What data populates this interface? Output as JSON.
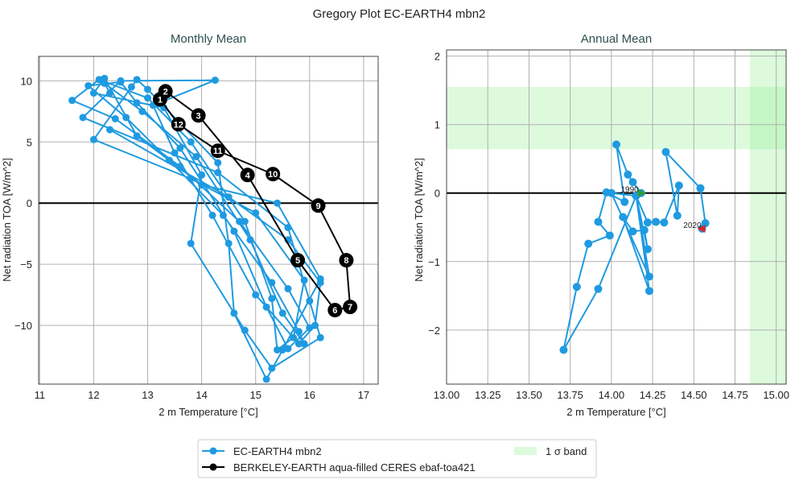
{
  "figure_title": "Gregory Plot EC-EARTH4 mbn2",
  "colors": {
    "model": "#1f9ae0",
    "obs": "#000000",
    "band": "#90ee90",
    "start": "#2ca02c",
    "end": "#d62728"
  },
  "legend": {
    "placement": "bottom-center",
    "entries": [
      {
        "label": "EC-EARTH4 mbn2",
        "type": "line-marker",
        "color": "#1f9ae0"
      },
      {
        "label": "BERKELEY-EARTH aqua-filled CERES ebaf-toa421",
        "type": "line-marker",
        "color": "#000000"
      },
      {
        "label": "1 σ band",
        "type": "patch",
        "color": "#90ee90"
      }
    ]
  },
  "chart_data": [
    {
      "type": "line",
      "title": "Monthly Mean",
      "xlabel": "2 m Temperature [°C]",
      "ylabel": "Net radiation TOA [W/m^2]",
      "xlim": [
        10.98,
        17.27
      ],
      "ylim": [
        -14.8,
        12.0
      ],
      "xticks": [
        11,
        12,
        13,
        14,
        15,
        16,
        17
      ],
      "yticks": [
        -10,
        -5,
        0,
        5,
        10
      ],
      "grid": true,
      "hline": 0,
      "series": [
        {
          "name": "EC-EARTH4 mbn2",
          "points": [
            [
              12.3,
              9.0
            ],
            [
              12.2,
              9.8
            ],
            [
              12.9,
              7.5
            ],
            [
              13.9,
              3.8
            ],
            [
              14.9,
              -3
            ],
            [
              15.5,
              -9
            ],
            [
              15.9,
              -11.5
            ],
            [
              15.8,
              -10.5
            ],
            [
              15.3,
              -6.5
            ],
            [
              14.4,
              -1
            ],
            [
              13.4,
              3.5
            ],
            [
              12.6,
              7
            ],
            [
              11.9,
              9.6
            ],
            [
              12.5,
              9.9
            ],
            [
              12.8,
              8.2
            ],
            [
              13.6,
              4.5
            ],
            [
              14.6,
              -2.3
            ],
            [
              15.2,
              -8.5
            ],
            [
              15.6,
              -11.9
            ],
            [
              16.0,
              -10.2
            ],
            [
              15.6,
              -7
            ],
            [
              14.7,
              -1.5
            ],
            [
              13.6,
              3
            ],
            [
              12.4,
              6.9
            ],
            [
              11.6,
              8.4
            ],
            [
              12.1,
              10.1
            ],
            [
              13.0,
              8.6
            ],
            [
              13.8,
              5
            ],
            [
              14.8,
              -1.5
            ],
            [
              15.3,
              -7.8
            ],
            [
              15.4,
              -12
            ],
            [
              15.7,
              -11
            ],
            [
              15.9,
              -6.3
            ],
            [
              15.0,
              -0.8
            ],
            [
              13.8,
              2
            ],
            [
              12.0,
              5.2
            ],
            [
              12.7,
              9.5
            ],
            [
              12.8,
              10.1
            ],
            [
              13.0,
              9.3
            ],
            [
              14.3,
              3.3
            ],
            [
              14.5,
              -3.3
            ],
            [
              14.6,
              -9
            ],
            [
              15.2,
              -14.4
            ],
            [
              15.5,
              -12
            ],
            [
              16.2,
              -6.2
            ],
            [
              15.4,
              0
            ],
            [
              14.0,
              1.5
            ],
            [
              12.8,
              5.5
            ],
            [
              12.2,
              10.2
            ],
            [
              12.0,
              9.0
            ],
            [
              13.3,
              7.8
            ],
            [
              14.0,
              2.3
            ],
            [
              13.8,
              -3.3
            ],
            [
              14.8,
              -10.4
            ],
            [
              15.3,
              -13.5
            ],
            [
              16.2,
              -11
            ],
            [
              16.0,
              -8
            ],
            [
              15.6,
              -2
            ],
            [
              14.3,
              2.5
            ],
            [
              11.8,
              7
            ],
            [
              12.5,
              10.0
            ],
            [
              14.25,
              10.05
            ],
            [
              13.1,
              8.0
            ],
            [
              13.5,
              4.1
            ],
            [
              14.2,
              -1
            ],
            [
              15.0,
              -7.5
            ],
            [
              15.8,
              -11.5
            ],
            [
              16.1,
              -10
            ],
            [
              16.2,
              -6.5
            ],
            [
              15.6,
              -3
            ],
            [
              14.5,
              0.5
            ],
            [
              12.3,
              6
            ]
          ]
        },
        {
          "name": "BERKELEY-EARTH aqua-filled CERES ebaf-toa421",
          "closed": true,
          "labels": [
            "1",
            "2",
            "3",
            "4",
            "5",
            "6",
            "7",
            "8",
            "9",
            "10",
            "11",
            "12"
          ],
          "points": [
            [
              13.23,
              8.49
            ],
            [
              13.33,
              9.14
            ],
            [
              13.94,
              7.17
            ],
            [
              14.85,
              2.3
            ],
            [
              15.78,
              -4.67
            ],
            [
              16.47,
              -8.75
            ],
            [
              16.75,
              -8.49
            ],
            [
              16.68,
              -4.67
            ],
            [
              16.16,
              -0.2
            ],
            [
              15.32,
              2.37
            ],
            [
              14.3,
              4.28
            ],
            [
              13.57,
              6.45
            ]
          ]
        }
      ]
    },
    {
      "type": "line",
      "title": "Annual Mean",
      "xlabel": "2 m Temperature [°C]",
      "ylabel": "Net radiation TOA [W/m^2]",
      "xlim": [
        13.0,
        15.06
      ],
      "ylim": [
        -2.79,
        2.09
      ],
      "xticks": [
        "13.00",
        "13.25",
        "13.50",
        "13.75",
        "14.00",
        "14.25",
        "14.50",
        "14.75",
        "15.00"
      ],
      "yticks": [
        -2,
        -1,
        0,
        1,
        2
      ],
      "grid": true,
      "hline": 0,
      "bands": {
        "y_band": [
          0.64,
          1.55
        ],
        "x_band": [
          14.84,
          15.06
        ]
      },
      "series": [
        {
          "name": "EC-EARTH4 mbn2",
          "start_label": "1990",
          "end_label": "2020",
          "points": [
            [
              14.18,
              0.0
            ],
            [
              14.13,
              0.16
            ],
            [
              14.1,
              0.27
            ],
            [
              14.03,
              0.71
            ],
            [
              14.08,
              -0.13
            ],
            [
              13.97,
              0.01
            ],
            [
              13.92,
              -0.42
            ],
            [
              13.99,
              -0.62
            ],
            [
              13.86,
              -0.74
            ],
            [
              13.79,
              -1.37
            ],
            [
              13.71,
              -2.29
            ],
            [
              13.92,
              -1.4
            ],
            [
              14.15,
              -0.04
            ],
            [
              14.0,
              0.0
            ],
            [
              14.23,
              -1.22
            ],
            [
              14.15,
              -0.04
            ],
            [
              14.23,
              -1.43
            ],
            [
              14.07,
              -0.35
            ],
            [
              14.13,
              -0.56
            ],
            [
              14.2,
              -0.54
            ],
            [
              14.22,
              -0.82
            ],
            [
              14.15,
              -0.04
            ],
            [
              14.22,
              -0.43
            ],
            [
              14.27,
              -0.42
            ],
            [
              14.32,
              -0.43
            ],
            [
              14.41,
              0.11
            ],
            [
              14.4,
              -0.33
            ],
            [
              14.33,
              0.6
            ],
            [
              14.54,
              0.07
            ],
            [
              14.57,
              -0.44
            ],
            [
              14.55,
              -0.52
            ]
          ]
        }
      ]
    }
  ]
}
